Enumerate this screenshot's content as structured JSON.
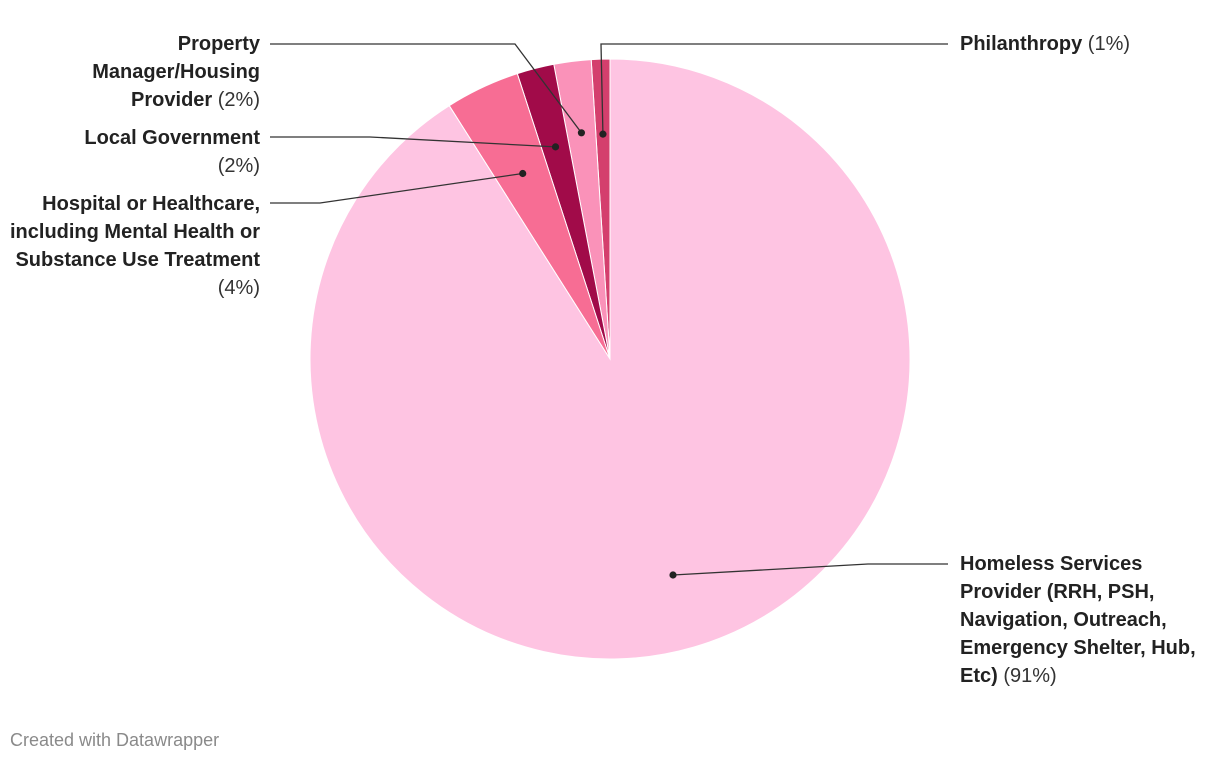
{
  "chart_data": {
    "type": "pie",
    "slices": [
      {
        "label": "Homeless Services Provider (RRH, PSH, Navigation, Outreach, Emergency Shelter, Hub, Etc)",
        "value": 91,
        "value_label": "(91%)",
        "color": "#fec4e2"
      },
      {
        "label": "Hospital or Healthcare, including Mental Health or Substance Use Treatment",
        "value": 4,
        "value_label": "(4%)",
        "color": "#f76d94"
      },
      {
        "label": "Local Government",
        "value": 2,
        "value_label": "(2%)",
        "color": "#a10b49"
      },
      {
        "label": "Property Manager/Housing Provider",
        "value": 2,
        "value_label": "(2%)",
        "color": "#fa92b9"
      },
      {
        "label": "Philanthropy",
        "value": 1,
        "value_label": "(1%)",
        "color": "#d43f6d"
      }
    ],
    "start_angle_deg": 0,
    "direction": "clockwise"
  },
  "credit": "Created with Datawrapper",
  "colors": {
    "leader_line": "#333333",
    "slice_border": "#ffffff"
  }
}
